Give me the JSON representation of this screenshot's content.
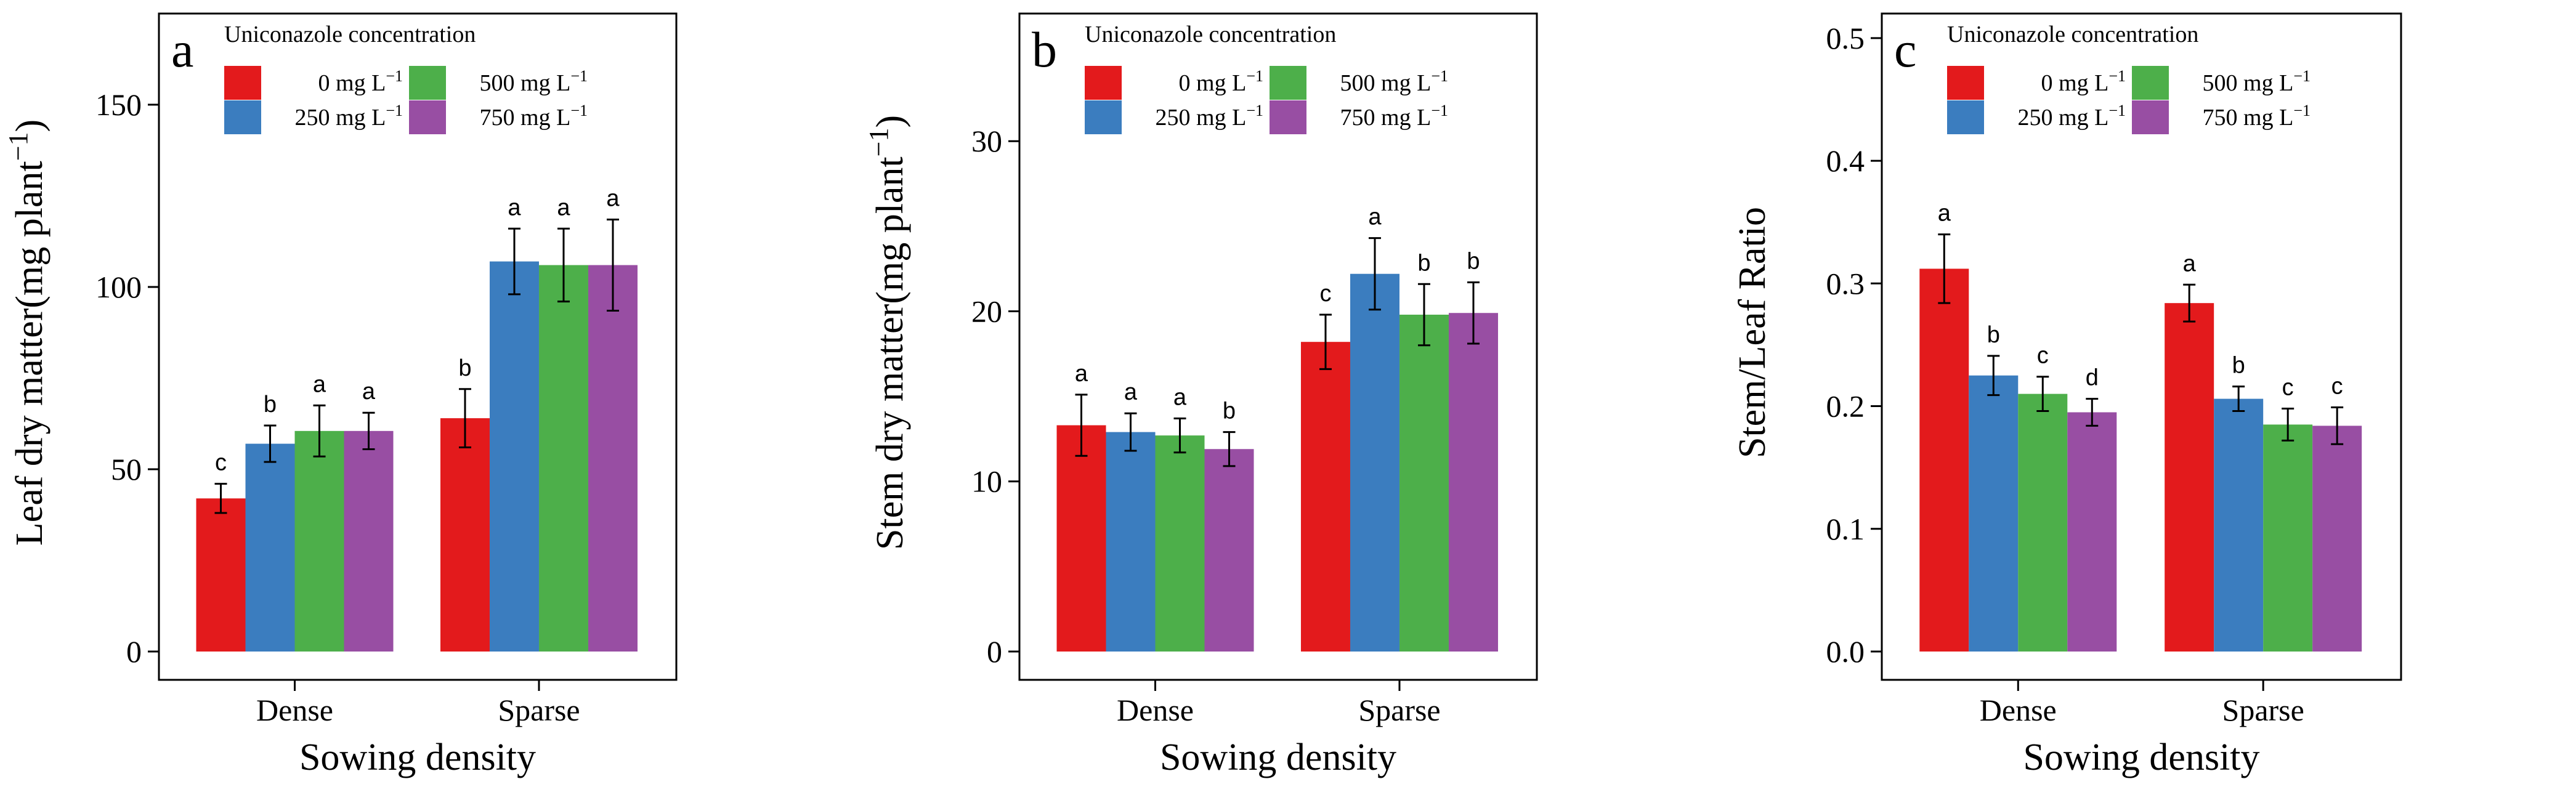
{
  "legend": {
    "title": "Uniconazole concentration",
    "entries": [
      {
        "label": "0 mg L",
        "sup": "−1"
      },
      {
        "label": "250 mg L",
        "sup": "−1"
      },
      {
        "label": "500 mg L",
        "sup": "−1"
      },
      {
        "label": "750 mg L",
        "sup": "−1"
      }
    ]
  },
  "colors": {
    "series": [
      "#e31a1c",
      "#3b7dbf",
      "#4daf4a",
      "#984ea3"
    ],
    "axis": "#000000"
  },
  "chart_data": [
    {
      "type": "bar",
      "panel_letter": "a",
      "title": "",
      "xlabel": "Sowing density",
      "ylabel": {
        "text": "Leaf dry matter(mg plant",
        "sup": "−1",
        "close": ")"
      },
      "categories": [
        "Dense",
        "Sparse"
      ],
      "ylim": [
        0,
        175
      ],
      "yticks": [
        0,
        50,
        100,
        150
      ],
      "ytick_labels": [
        "0",
        "50",
        "100",
        "150"
      ],
      "series": [
        {
          "name": "0 mg L−1",
          "values": [
            42,
            64
          ],
          "errors": [
            4,
            8
          ],
          "letters": [
            "c",
            "b"
          ]
        },
        {
          "name": "250 mg L−1",
          "values": [
            57,
            107
          ],
          "errors": [
            5,
            9
          ],
          "letters": [
            "b",
            "a"
          ]
        },
        {
          "name": "500 mg L−1",
          "values": [
            60.5,
            106
          ],
          "errors": [
            7,
            10
          ],
          "letters": [
            "a",
            "a"
          ]
        },
        {
          "name": "750 mg L−1",
          "values": [
            60.5,
            106
          ],
          "errors": [
            5,
            12.5
          ],
          "letters": [
            "a",
            "a"
          ]
        }
      ]
    },
    {
      "type": "bar",
      "panel_letter": "b",
      "title": "",
      "xlabel": "Sowing density",
      "ylabel": {
        "text": "Stem dry matter(mg plant",
        "sup": "−1",
        "close": ")"
      },
      "categories": [
        "Dense",
        "Sparse"
      ],
      "ylim": [
        0,
        37.5
      ],
      "yticks": [
        0,
        10,
        20,
        30
      ],
      "ytick_labels": [
        "0",
        "10",
        "20",
        "30"
      ],
      "series": [
        {
          "name": "0 mg L−1",
          "values": [
            13.3,
            18.2
          ],
          "errors": [
            1.8,
            1.6
          ],
          "letters": [
            "a",
            "c"
          ]
        },
        {
          "name": "250 mg L−1",
          "values": [
            12.9,
            22.2
          ],
          "errors": [
            1.1,
            2.1
          ],
          "letters": [
            "a",
            "a"
          ]
        },
        {
          "name": "500 mg L−1",
          "values": [
            12.7,
            19.8
          ],
          "errors": [
            1.0,
            1.8
          ],
          "letters": [
            "a",
            "b"
          ]
        },
        {
          "name": "750 mg L−1",
          "values": [
            11.9,
            19.9
          ],
          "errors": [
            1.0,
            1.8
          ],
          "letters": [
            "b",
            "b"
          ]
        }
      ]
    },
    {
      "type": "bar",
      "panel_letter": "c",
      "title": "",
      "xlabel": "Sowing density",
      "ylabel": {
        "text": "Stem/Leaf Ratio",
        "sup": "",
        "close": ""
      },
      "categories": [
        "Dense",
        "Sparse"
      ],
      "ylim": [
        0,
        0.52
      ],
      "yticks": [
        0,
        0.1,
        0.2,
        0.3,
        0.4,
        0.5
      ],
      "ytick_labels": [
        "0.0",
        "0.1",
        "0.2",
        "0.3",
        "0.4",
        "0.5"
      ],
      "series": [
        {
          "name": "0 mg L−1",
          "values": [
            0.312,
            0.284
          ],
          "errors": [
            0.028,
            0.015
          ],
          "letters": [
            "a",
            "a"
          ]
        },
        {
          "name": "250 mg L−1",
          "values": [
            0.225,
            0.206
          ],
          "errors": [
            0.016,
            0.01
          ],
          "letters": [
            "b",
            "b"
          ]
        },
        {
          "name": "500 mg L−1",
          "values": [
            0.21,
            0.185
          ],
          "errors": [
            0.014,
            0.013
          ],
          "letters": [
            "c",
            "c"
          ]
        },
        {
          "name": "750 mg L−1",
          "values": [
            0.195,
            0.184
          ],
          "errors": [
            0.011,
            0.015
          ],
          "letters": [
            "d",
            "c"
          ]
        }
      ]
    }
  ]
}
